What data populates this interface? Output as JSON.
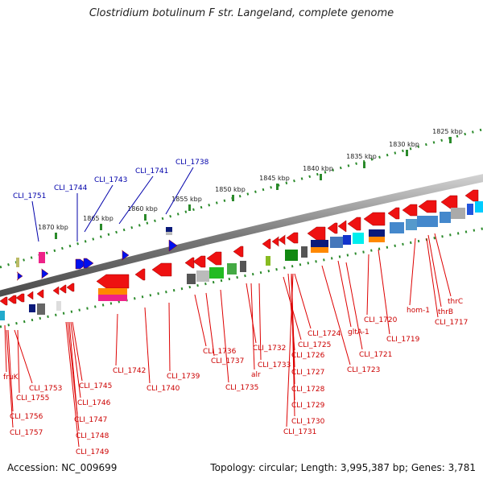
{
  "title": "Clostridium botulinum F str. Langeland, complete genome",
  "footer": {
    "accession": "Accession: NC_009699",
    "topology": "Topology: circular; Length: 3,995,387 bp; Genes: 3,781"
  },
  "kbp_labels": [
    "1825 kbp",
    "1830 kbp",
    "1835 kbp",
    "1840 kbp",
    "1845 kbp",
    "1850 kbp",
    "1855 kbp",
    "1860 kbp",
    "1865 kbp",
    "1870 kbp"
  ],
  "upper_gene_labels": [
    "CLI_1751",
    "CLI_1744",
    "CLI_1743",
    "CLI_1741",
    "CLI_1738"
  ],
  "lower_gene_labels": [
    "fruK",
    "CLI_1753",
    "CLI_1755",
    "CLI_1756",
    "CLI_1757",
    "CLI_1745",
    "CLI_1746",
    "CLI_1747",
    "CLI_1748",
    "CLI_1749",
    "CLI_1742",
    "CLI_1740",
    "CLI_1739",
    "CLI_1736",
    "CLI_1737",
    "CLI_1735",
    "CLI_1732",
    "alr",
    "CLI_1733",
    "CLI_1725",
    "CLI_1726",
    "CLI_1727",
    "CLI_1728",
    "CLI_1729",
    "CLI_1730",
    "CLI_1731",
    "CLI_1724",
    "CLI_1723",
    "gltA-1",
    "CLI_1721",
    "CLI_1720",
    "CLI_1719",
    "hom-1",
    "thrB",
    "thrC",
    "CLI_1717"
  ]
}
